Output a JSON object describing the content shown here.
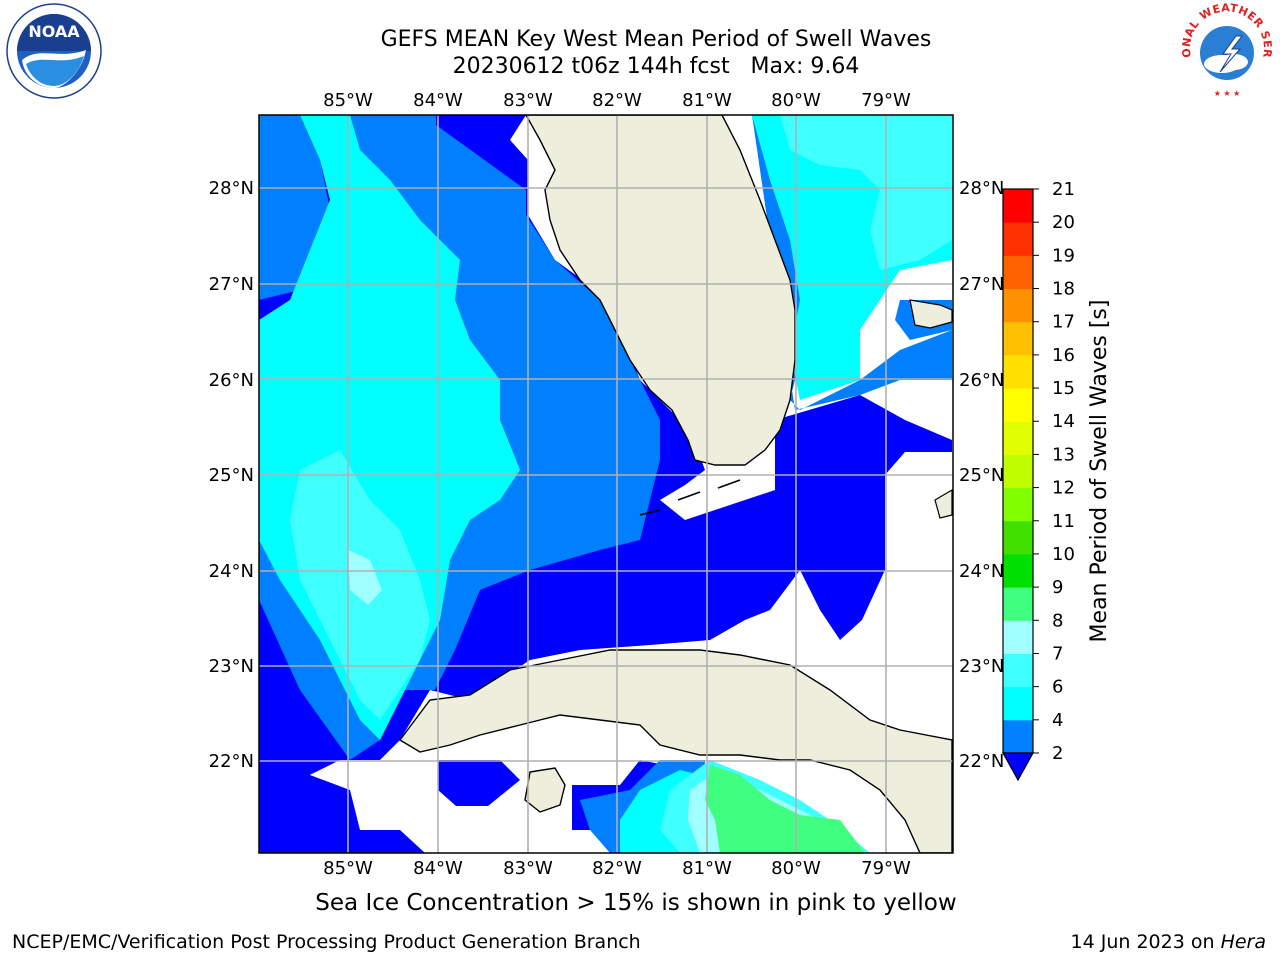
{
  "header": {
    "title_line1": "GEFS MEAN Key West Mean Period of Swell Waves",
    "title_line2": "20230612 t06z 144h fcst   Max: 9.64"
  },
  "logos": {
    "left": "noaa-logo",
    "left_text": "NOAA",
    "right": "nws-logo",
    "right_text": "NATIONAL WEATHER SERVICE"
  },
  "map": {
    "lon_ticks": [
      "85°W",
      "84°W",
      "83°W",
      "82°W",
      "81°W",
      "80°W",
      "79°W"
    ],
    "lat_ticks": [
      "22°N",
      "23°N",
      "24°N",
      "25°N",
      "26°N",
      "27°N",
      "28°N"
    ],
    "colors": {
      "land": "#eeeedd",
      "grid": "#b0b0b0",
      "band_2_4": "#0000ff",
      "band_4_6": "#0080ff",
      "band_6_7": "#00ffff",
      "band_7_8": "#40ffff",
      "band_8_9": "#a0ffff",
      "band_9_10": "#40ff80"
    }
  },
  "colorbar": {
    "label": "Mean Period of Swell Waves [s]",
    "ticks": [
      "2",
      "4",
      "6",
      "7",
      "8",
      "9",
      "10",
      "11",
      "12",
      "13",
      "14",
      "15",
      "16",
      "17",
      "18",
      "19",
      "20",
      "21"
    ],
    "colors": [
      "#0080ff",
      "#00ffff",
      "#40ffff",
      "#a0ffff",
      "#40ff80",
      "#00e000",
      "#40e000",
      "#80ff00",
      "#c0ff00",
      "#e0ff00",
      "#ffff00",
      "#ffe000",
      "#ffc000",
      "#ff9000",
      "#ff6000",
      "#ff3000",
      "#ff0000"
    ],
    "under_color": "#0000ff"
  },
  "caption": "Sea Ice Concentration > 15% is shown in pink to yellow",
  "footer": {
    "left": "NCEP/EMC/Verification Post Processing Product Generation Branch",
    "date": "14 Jun 2023 on ",
    "machine": "Hera"
  }
}
